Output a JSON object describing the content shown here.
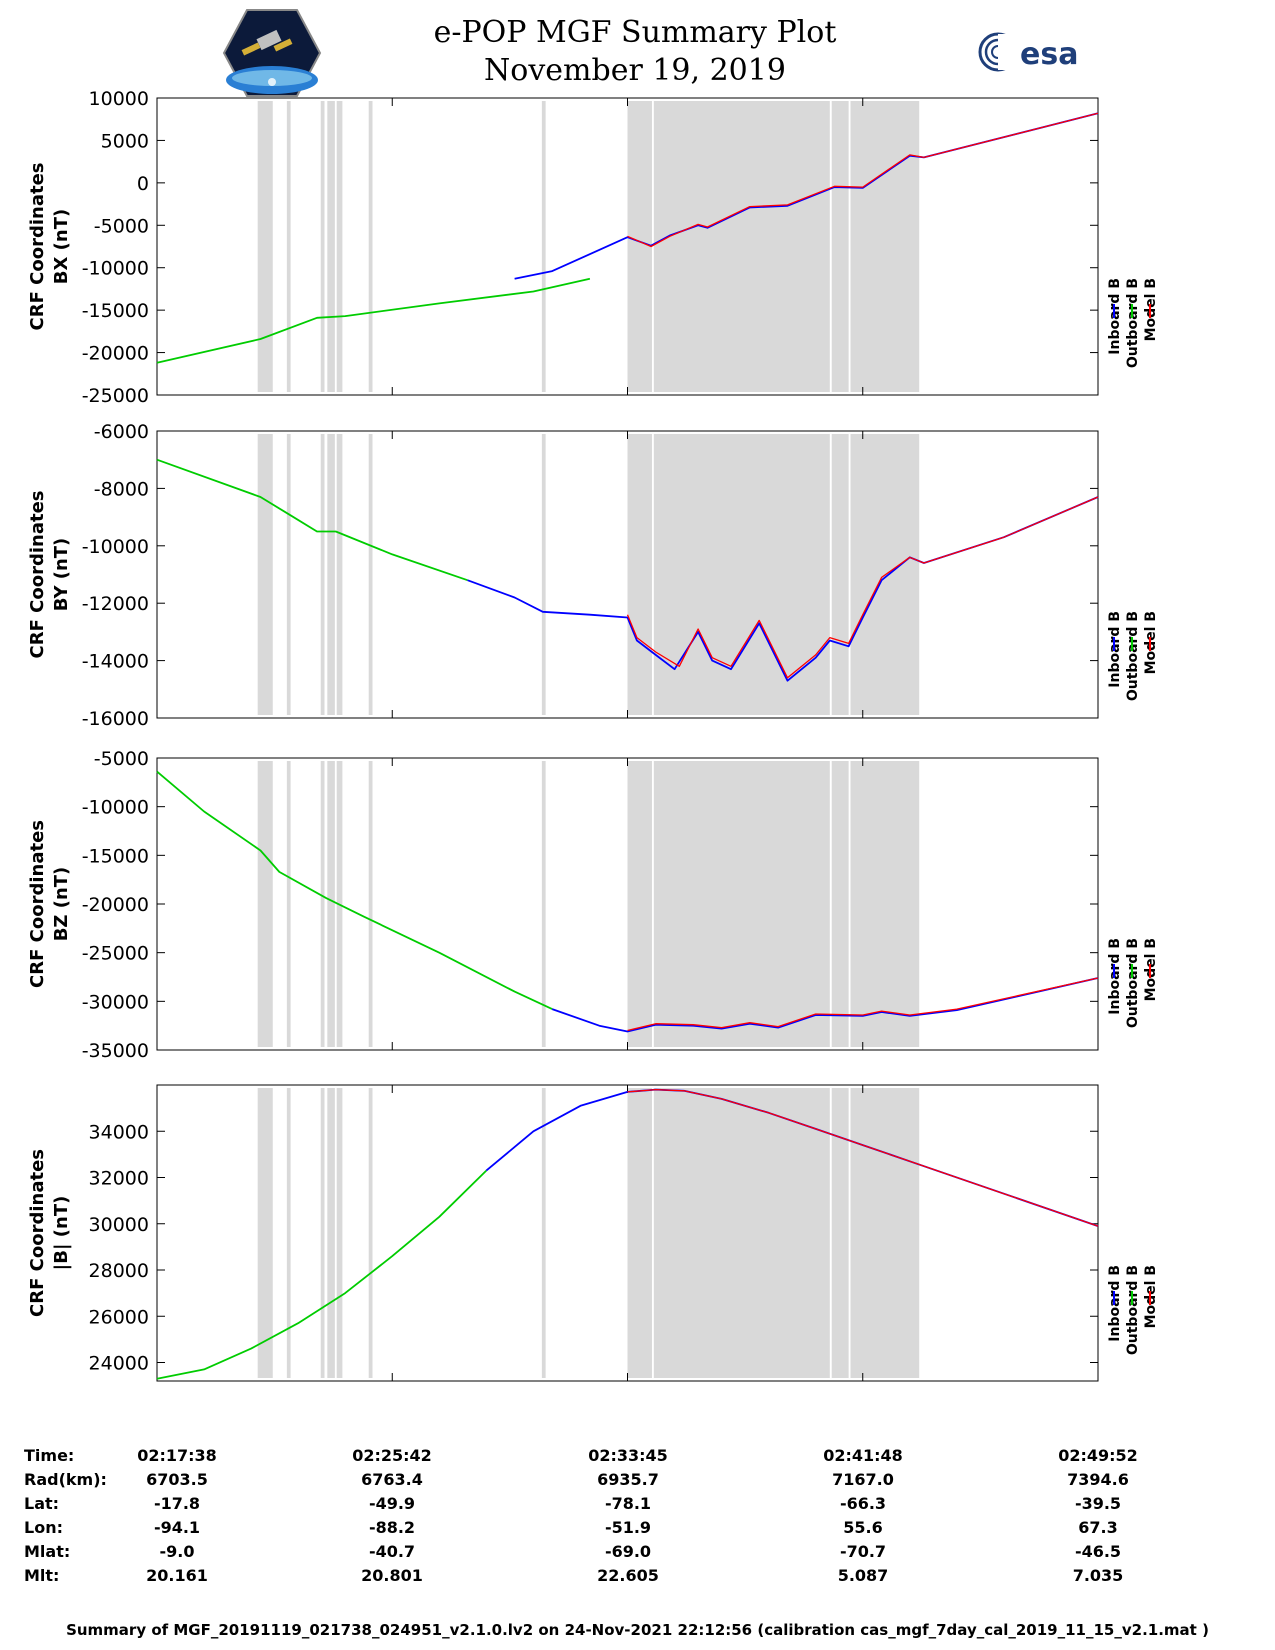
{
  "header": {
    "title": "e-POP MGF Summary Plot",
    "date": "November 19, 2019",
    "esa_logo_text": "esa"
  },
  "colors": {
    "inboard": "#0000ff",
    "outboard": "#00cc00",
    "model": "#ff0000",
    "shade": "#d9d9d9"
  },
  "chart_data": [
    {
      "type": "line",
      "ylabel_line1": "CRF Coordinates",
      "ylabel_line2": "BX (nT)",
      "ylim": [
        -25000,
        10000
      ],
      "yticks": [
        -25000,
        -20000,
        -15000,
        -10000,
        -5000,
        0,
        5000,
        10000
      ],
      "legend": [
        "Inboard B",
        "Outboard B",
        "Model B"
      ],
      "series": [
        {
          "name": "Outboard B",
          "color_key": "outboard",
          "points": [
            [
              0,
              -21200
            ],
            [
              0.11,
              -18400
            ],
            [
              0.17,
              -15900
            ],
            [
              0.2,
              -15700
            ],
            [
              0.3,
              -14200
            ],
            [
              0.4,
              -12800
            ],
            [
              0.46,
              -11300
            ]
          ]
        },
        {
          "name": "Inboard B",
          "color_key": "inboard",
          "points": [
            [
              0.38,
              -11300
            ],
            [
              0.42,
              -10400
            ],
            [
              0.5,
              -6400
            ],
            [
              0.525,
              -7400
            ],
            [
              0.545,
              -6200
            ],
            [
              0.575,
              -5000
            ],
            [
              0.585,
              -5300
            ],
            [
              0.63,
              -2900
            ],
            [
              0.67,
              -2700
            ],
            [
              0.72,
              -500
            ],
            [
              0.75,
              -600
            ],
            [
              0.8,
              3200
            ],
            [
              0.815,
              3000
            ],
            [
              1,
              8200
            ]
          ]
        },
        {
          "name": "Model B",
          "color_key": "model",
          "points": [
            [
              0.5,
              -6300
            ],
            [
              0.525,
              -7500
            ],
            [
              0.545,
              -6300
            ],
            [
              0.575,
              -4900
            ],
            [
              0.585,
              -5200
            ],
            [
              0.63,
              -2800
            ],
            [
              0.67,
              -2600
            ],
            [
              0.72,
              -400
            ],
            [
              0.75,
              -500
            ],
            [
              0.8,
              3300
            ],
            [
              0.815,
              3000
            ],
            [
              1,
              8200
            ]
          ]
        }
      ]
    },
    {
      "type": "line",
      "ylabel_line1": "CRF Coordinates",
      "ylabel_line2": "BY (nT)",
      "ylim": [
        -16000,
        -6000
      ],
      "yticks": [
        -16000,
        -14000,
        -12000,
        -10000,
        -8000,
        -6000
      ],
      "legend": [
        "Inboard B",
        "Outboard B",
        "Model B"
      ],
      "series": [
        {
          "name": "Outboard B",
          "color_key": "outboard",
          "points": [
            [
              0,
              -7000
            ],
            [
              0.11,
              -8300
            ],
            [
              0.14,
              -8900
            ],
            [
              0.17,
              -9500
            ],
            [
              0.19,
              -9500
            ],
            [
              0.25,
              -10300
            ],
            [
              0.33,
              -11200
            ]
          ]
        },
        {
          "name": "Inboard B",
          "color_key": "inboard",
          "points": [
            [
              0.33,
              -11200
            ],
            [
              0.38,
              -11800
            ],
            [
              0.41,
              -12300
            ],
            [
              0.46,
              -12400
            ],
            [
              0.5,
              -12500
            ],
            [
              0.51,
              -13300
            ],
            [
              0.53,
              -13800
            ],
            [
              0.55,
              -14300
            ],
            [
              0.575,
              -13000
            ],
            [
              0.59,
              -14000
            ],
            [
              0.61,
              -14300
            ],
            [
              0.64,
              -12700
            ],
            [
              0.67,
              -14700
            ],
            [
              0.7,
              -13900
            ],
            [
              0.715,
              -13300
            ],
            [
              0.735,
              -13500
            ],
            [
              0.75,
              -12500
            ],
            [
              0.77,
              -11200
            ],
            [
              0.8,
              -10400
            ],
            [
              0.815,
              -10600
            ],
            [
              0.9,
              -9700
            ],
            [
              1,
              -8300
            ]
          ]
        },
        {
          "name": "Model B",
          "color_key": "model",
          "points": [
            [
              0.5,
              -12400
            ],
            [
              0.51,
              -13200
            ],
            [
              0.53,
              -13700
            ],
            [
              0.555,
              -14200
            ],
            [
              0.575,
              -12900
            ],
            [
              0.59,
              -13900
            ],
            [
              0.61,
              -14200
            ],
            [
              0.64,
              -12600
            ],
            [
              0.67,
              -14600
            ],
            [
              0.7,
              -13800
            ],
            [
              0.715,
              -13200
            ],
            [
              0.735,
              -13400
            ],
            [
              0.75,
              -12400
            ],
            [
              0.77,
              -11100
            ],
            [
              0.8,
              -10400
            ],
            [
              0.815,
              -10600
            ],
            [
              0.9,
              -9700
            ],
            [
              1,
              -8300
            ]
          ]
        }
      ]
    },
    {
      "type": "line",
      "ylabel_line1": "CRF Coordinates",
      "ylabel_line2": "BZ (nT)",
      "ylim": [
        -35000,
        -5000
      ],
      "yticks": [
        -35000,
        -30000,
        -25000,
        -20000,
        -15000,
        -10000,
        -5000
      ],
      "legend": [
        "Inboard B",
        "Outboard B",
        "Model B"
      ],
      "series": [
        {
          "name": "Outboard B",
          "color_key": "outboard",
          "points": [
            [
              0,
              -6400
            ],
            [
              0.05,
              -10500
            ],
            [
              0.11,
              -14500
            ],
            [
              0.13,
              -16700
            ],
            [
              0.18,
              -19400
            ],
            [
              0.22,
              -21300
            ],
            [
              0.3,
              -25000
            ],
            [
              0.38,
              -29000
            ],
            [
              0.42,
              -30800
            ]
          ]
        },
        {
          "name": "Inboard B",
          "color_key": "inboard",
          "points": [
            [
              0.42,
              -30800
            ],
            [
              0.47,
              -32500
            ],
            [
              0.5,
              -33100
            ],
            [
              0.53,
              -32400
            ],
            [
              0.57,
              -32500
            ],
            [
              0.6,
              -32800
            ],
            [
              0.63,
              -32300
            ],
            [
              0.66,
              -32700
            ],
            [
              0.7,
              -31400
            ],
            [
              0.75,
              -31500
            ],
            [
              0.77,
              -31100
            ],
            [
              0.8,
              -31500
            ],
            [
              0.85,
              -30900
            ],
            [
              1,
              -27600
            ]
          ]
        },
        {
          "name": "Model B",
          "color_key": "model",
          "points": [
            [
              0.5,
              -33000
            ],
            [
              0.53,
              -32300
            ],
            [
              0.57,
              -32400
            ],
            [
              0.6,
              -32700
            ],
            [
              0.63,
              -32200
            ],
            [
              0.66,
              -32600
            ],
            [
              0.7,
              -31300
            ],
            [
              0.75,
              -31400
            ],
            [
              0.77,
              -31000
            ],
            [
              0.8,
              -31400
            ],
            [
              0.85,
              -30800
            ],
            [
              1,
              -27600
            ]
          ]
        }
      ]
    },
    {
      "type": "line",
      "ylabel_line1": "CRF Coordinates",
      "ylabel_line2": "|B| (nT)",
      "ylim": [
        23200,
        36000
      ],
      "yticks": [
        24000,
        26000,
        28000,
        30000,
        32000,
        34000
      ],
      "legend": [
        "Inboard B",
        "Outboard B",
        "Model B"
      ],
      "series": [
        {
          "name": "Outboard B",
          "color_key": "outboard",
          "points": [
            [
              0,
              23300
            ],
            [
              0.05,
              23700
            ],
            [
              0.1,
              24600
            ],
            [
              0.15,
              25700
            ],
            [
              0.2,
              27000
            ],
            [
              0.25,
              28600
            ],
            [
              0.3,
              30300
            ],
            [
              0.35,
              32300
            ]
          ]
        },
        {
          "name": "Inboard B",
          "color_key": "inboard",
          "points": [
            [
              0.35,
              32300
            ],
            [
              0.4,
              34000
            ],
            [
              0.45,
              35100
            ],
            [
              0.5,
              35700
            ],
            [
              0.53,
              35800
            ],
            [
              0.56,
              35750
            ],
            [
              0.6,
              35400
            ],
            [
              0.65,
              34800
            ],
            [
              0.7,
              34100
            ],
            [
              0.75,
              33400
            ],
            [
              0.8,
              32700
            ],
            [
              0.9,
              31300
            ],
            [
              1,
              29900
            ]
          ]
        },
        {
          "name": "Model B",
          "color_key": "model",
          "points": [
            [
              0.5,
              35700
            ],
            [
              0.53,
              35800
            ],
            [
              0.56,
              35750
            ],
            [
              0.6,
              35400
            ],
            [
              0.65,
              34800
            ],
            [
              0.7,
              34100
            ],
            [
              0.75,
              33400
            ],
            [
              0.8,
              32700
            ],
            [
              0.9,
              31300
            ],
            [
              1,
              29900
            ]
          ]
        }
      ]
    }
  ],
  "shade_bands": [
    {
      "start": 0.107,
      "end": 0.123
    },
    {
      "start": 0.138,
      "end": 0.142
    },
    {
      "start": 0.174,
      "end": 0.178
    },
    {
      "start": 0.181,
      "end": 0.189
    },
    {
      "start": 0.191,
      "end": 0.197
    },
    {
      "start": 0.225,
      "end": 0.229
    },
    {
      "start": 0.409,
      "end": 0.413
    },
    {
      "start": 0.5,
      "end": 0.526
    },
    {
      "start": 0.528,
      "end": 0.715
    },
    {
      "start": 0.717,
      "end": 0.735
    },
    {
      "start": 0.737,
      "end": 0.81
    }
  ],
  "info_table": {
    "rows": [
      {
        "label": "Time:",
        "values": [
          "02:17:38",
          "02:25:42",
          "02:33:45",
          "02:41:48",
          "02:49:52"
        ]
      },
      {
        "label": "Rad(km):",
        "values": [
          "6703.5",
          "6763.4",
          "6935.7",
          "7167.0",
          "7394.6"
        ]
      },
      {
        "label": "Lat:",
        "values": [
          "-17.8",
          "-49.9",
          "-78.1",
          "-66.3",
          "-39.5"
        ]
      },
      {
        "label": "Lon:",
        "values": [
          "-94.1",
          "-88.2",
          "-51.9",
          "55.6",
          "67.3"
        ]
      },
      {
        "label": "Mlat:",
        "values": [
          "-9.0",
          "-40.7",
          "-69.0",
          "-70.7",
          "-46.5"
        ]
      },
      {
        "label": "Mlt:",
        "values": [
          "20.161",
          "20.801",
          "22.605",
          "5.087",
          "7.035"
        ]
      }
    ]
  },
  "footer": "Summary of MGF_20191119_021738_024951_v2.1.0.lv2 on 24-Nov-2021 22:12:56 (calibration cas_mgf_7day_cal_2019_11_15_v2.1.mat )"
}
